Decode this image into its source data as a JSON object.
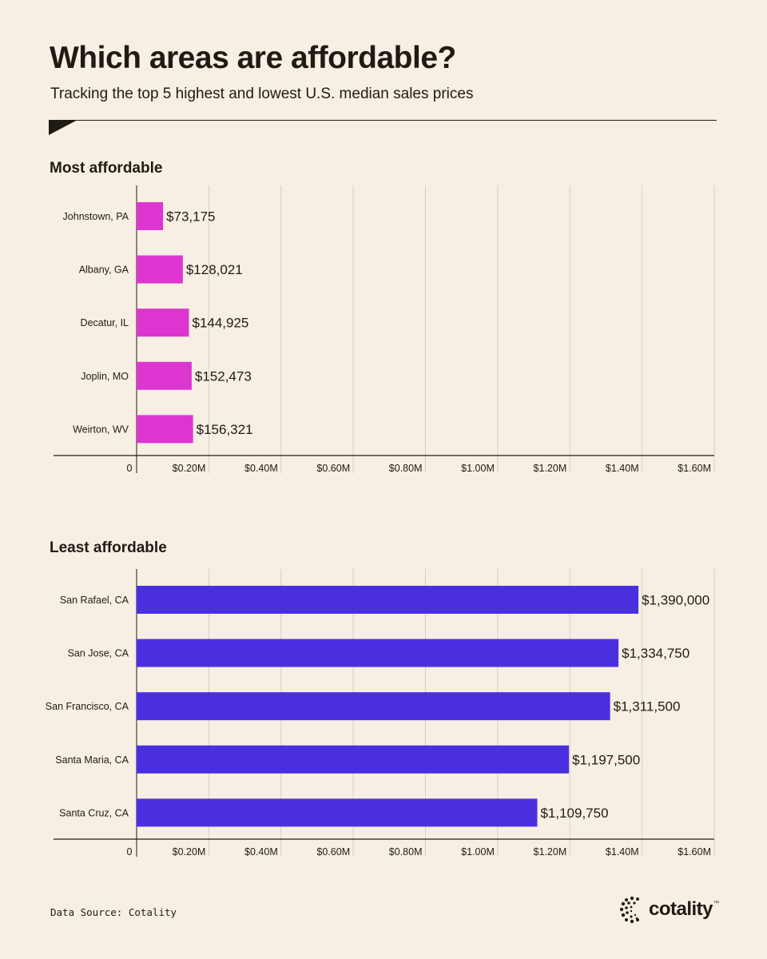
{
  "header": {
    "title": "Which areas are affordable?",
    "subtitle": "Tracking the top 5 highest and lowest U.S. median sales prices"
  },
  "footer": {
    "source": "Data Source: Cotality",
    "logo": "cotality",
    "logo_mark": "™"
  },
  "chart_data": [
    {
      "type": "bar",
      "orientation": "horizontal",
      "title": "Most affordable",
      "categories": [
        "Johnstown, PA",
        "Albany, GA",
        "Decatur, IL",
        "Joplin, MO",
        "Weirton, WV"
      ],
      "values": [
        73175,
        128021,
        144925,
        152473,
        156321
      ],
      "value_labels": [
        "$73,175",
        "$128,021",
        "$144,925",
        "$152,473",
        "$156,321"
      ],
      "xlim": [
        0,
        1600000
      ],
      "xticks": [
        0,
        200000,
        400000,
        600000,
        800000,
        1000000,
        1200000,
        1400000,
        1600000
      ],
      "xtick_labels": [
        "0",
        "$0.20M",
        "$0.40M",
        "$0.60M",
        "$0.80M",
        "$1.00M",
        "$1.20M",
        "$1.40M",
        "$1.60M"
      ],
      "color": "#dd35d0",
      "grid": true
    },
    {
      "type": "bar",
      "orientation": "horizontal",
      "title": "Least affordable",
      "categories": [
        "San Rafael, CA",
        "San Jose, CA",
        "San Francisco, CA",
        "Santa Maria, CA",
        "Santa Cruz, CA"
      ],
      "values": [
        1390000,
        1334750,
        1311500,
        1197500,
        1109750
      ],
      "value_labels": [
        "$1,390,000",
        "$1,334,750",
        "$1,311,500",
        "$1,197,500",
        "$1,109,750"
      ],
      "xlim": [
        0,
        1600000
      ],
      "xticks": [
        0,
        200000,
        400000,
        600000,
        800000,
        1000000,
        1200000,
        1400000,
        1600000
      ],
      "xtick_labels": [
        "0",
        "$0.20M",
        "$0.40M",
        "$0.60M",
        "$0.80M",
        "$1.00M",
        "$1.20M",
        "$1.40M",
        "$1.60M"
      ],
      "color": "#4a2fe0",
      "grid": true
    }
  ]
}
